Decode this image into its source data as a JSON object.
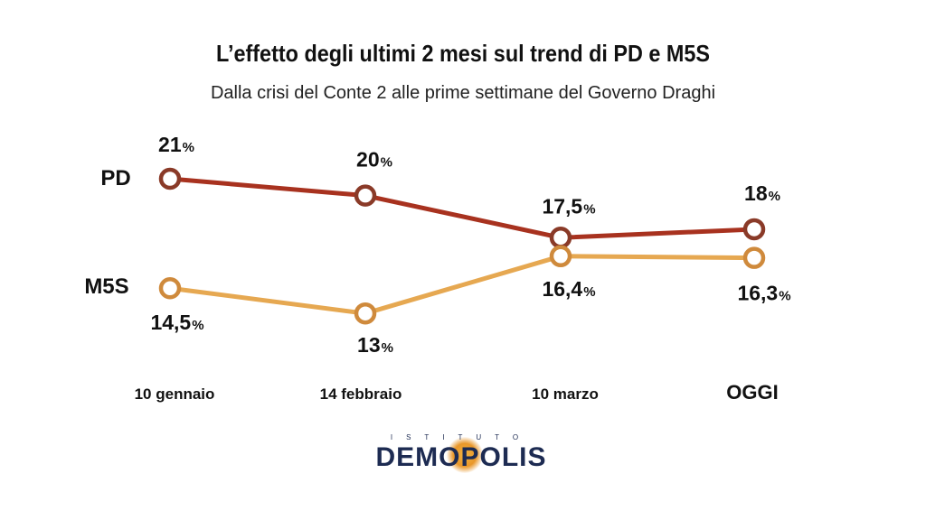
{
  "header": {
    "title": "L’effetto degli ultimi 2 mesi sul trend di PD e M5S",
    "subtitle": "Dalla crisi del Conte 2 alle prime settimane del Governo Draghi"
  },
  "logo": {
    "small_text": "ISTITUTO",
    "main_text": "DEMOPOLIS"
  },
  "chart_data": {
    "type": "line",
    "categories": [
      "10 gennaio",
      "14 febbraio",
      "10 marzo",
      "OGGI"
    ],
    "series": [
      {
        "name": "PD",
        "values": [
          21,
          20,
          17.5,
          18
        ],
        "labels": [
          "21",
          "20",
          "17,5",
          "18"
        ],
        "color": "#a8321f",
        "marker_color": "#8a3a28"
      },
      {
        "name": "M5S",
        "values": [
          14.5,
          13,
          16.4,
          16.3
        ],
        "labels": [
          "14,5",
          "13",
          "16,4",
          "16,3"
        ],
        "color": "#e6a851",
        "marker_color": "#cf8a3c"
      }
    ],
    "unit": "%",
    "title": "L’effetto degli ultimi 2 mesi sul trend di PD e M5S",
    "subtitle": "Dalla crisi del Conte 2 alle prime settimane del Governo Draghi",
    "grid": false,
    "legend": "left"
  }
}
